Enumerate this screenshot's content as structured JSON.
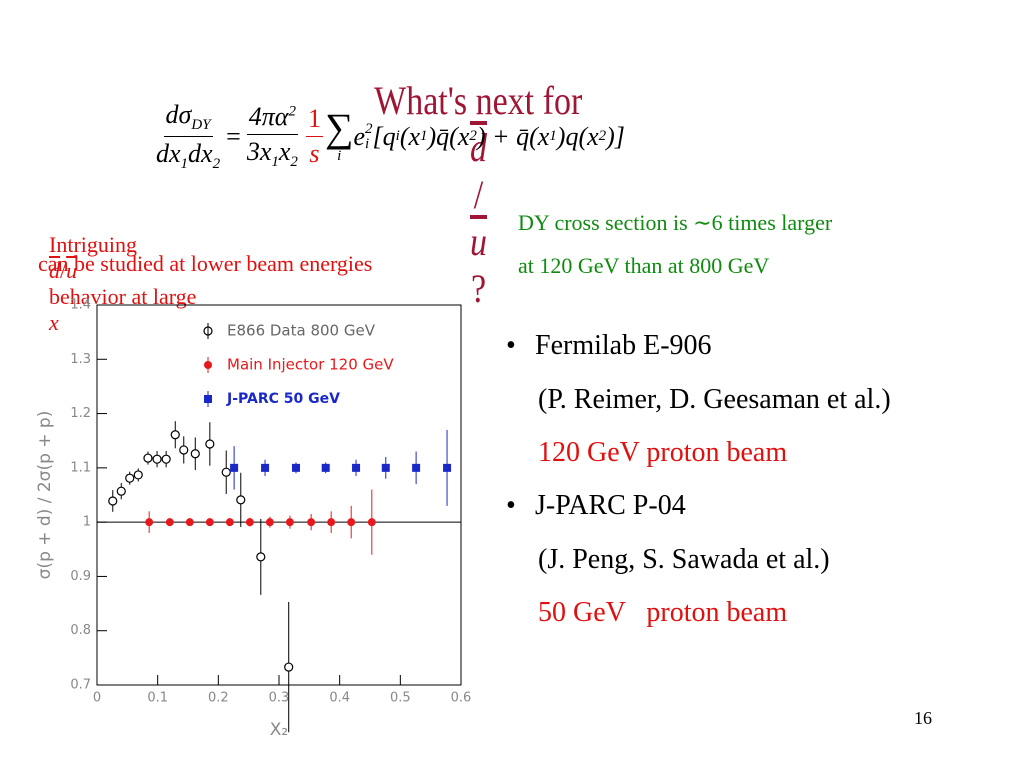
{
  "title": {
    "text": "What's next for",
    "d": "d",
    "slash": "/",
    "u": "u",
    "end": "?"
  },
  "formula": [
    "dσ",
    "DY",
    "dx",
    "1",
    "dx",
    "2",
    "=",
    "4πα",
    "2",
    "3x",
    "1",
    "x",
    "2",
    "1",
    "s",
    "∑",
    "i",
    "e",
    "i",
    "2",
    "[q",
    "i",
    "(x",
    "1",
    ")q̄(x",
    "2",
    ") + q̄(x",
    "1",
    ")q(x",
    "2",
    ")]"
  ],
  "left_note": {
    "line1": [
      "Intriguing",
      "d",
      "/",
      "u",
      "behavior at large",
      "x"
    ],
    "line2": "can be studied at lower beam energies"
  },
  "right_note": {
    "line1": "DY cross section is ∼6 times larger",
    "line2": "at 120 GeV than at 800 GeV"
  },
  "bullets": [
    {
      "title": "Fermilab E-906",
      "authors": "(P. Reimer, D. Geesaman et al.)",
      "beam": "120 GeV proton beam"
    },
    {
      "title": "J-PARC P-04",
      "authors": "(J. Peng, S. Sawada et al.)",
      "beam": "50 GeV   proton beam"
    }
  ],
  "page_number": "16",
  "chart_data": {
    "type": "scatter",
    "xlabel": "X₂",
    "ylabel": "σ(p + d) / 2σ(p + p)",
    "xlim": [
      0,
      0.6
    ],
    "ylim": [
      0.7,
      1.4
    ],
    "xticks": [
      0,
      0.1,
      0.2,
      0.3,
      0.4,
      0.5,
      0.6
    ],
    "yticks": [
      0.7,
      0.8,
      0.9,
      1,
      1.1,
      1.2,
      1.3,
      1.4
    ],
    "hline": 1,
    "series": [
      {
        "name": "E866 Data 800 GeV",
        "color": "#000000",
        "marker": "open-circle",
        "x": [
          0.026,
          0.04,
          0.054,
          0.068,
          0.084,
          0.099,
          0.114,
          0.129,
          0.143,
          0.162,
          0.186,
          0.213,
          0.237,
          0.27,
          0.316
        ],
        "values": [
          1.039,
          1.057,
          1.081,
          1.087,
          1.118,
          1.116,
          1.116,
          1.161,
          1.133,
          1.126,
          1.144,
          1.092,
          1.041,
          0.936,
          0.733
        ],
        "errors": [
          0.02,
          0.015,
          0.012,
          0.012,
          0.012,
          0.015,
          0.015,
          0.025,
          0.025,
          0.03,
          0.04,
          0.04,
          0.05,
          0.07,
          0.12
        ]
      },
      {
        "name": "Main Injector 120 GeV",
        "color": "#e8191c",
        "marker": "filled-circle",
        "x": [
          0.086,
          0.12,
          0.153,
          0.186,
          0.219,
          0.252,
          0.285,
          0.318,
          0.353,
          0.386,
          0.419,
          0.453
        ],
        "values": [
          1,
          1,
          1,
          1,
          1,
          1,
          1,
          1,
          1,
          1,
          1,
          1
        ],
        "errors": [
          0.02,
          0.005,
          0.005,
          0.005,
          0.005,
          0.008,
          0.01,
          0.012,
          0.015,
          0.02,
          0.03,
          0.06
        ]
      },
      {
        "name": "J-PARC 50 GeV",
        "color": "#1a28c8",
        "marker": "filled-square",
        "x": [
          0.226,
          0.277,
          0.328,
          0.377,
          0.427,
          0.476,
          0.526,
          0.577
        ],
        "values": [
          1.1,
          1.1,
          1.1,
          1.1,
          1.1,
          1.1,
          1.1,
          1.1
        ],
        "errors": [
          0.04,
          0.015,
          0.01,
          0.01,
          0.015,
          0.02,
          0.03,
          0.07
        ]
      }
    ]
  }
}
